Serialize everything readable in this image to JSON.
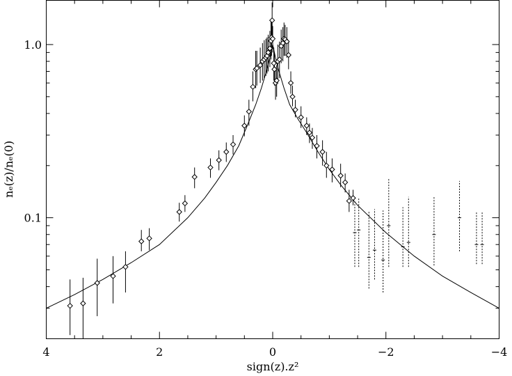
{
  "chart_data": {
    "type": "scatter",
    "xlabel": "sign(z).z²",
    "ylabel": "nₑ(z)/nₑ(0)",
    "xlim": [
      4,
      -4
    ],
    "ylim": [
      0.02,
      1.8
    ],
    "yscale": "log",
    "x_reversed": true,
    "grid": false,
    "x_ticks": [
      4,
      2,
      0,
      -2,
      -4
    ],
    "x_tick_labels": [
      "4",
      "2",
      "0",
      "−2",
      "−4"
    ],
    "y_ticks": [
      0.1,
      1.0
    ],
    "y_tick_labels": [
      "0.1",
      "1.0"
    ],
    "fit_curve": {
      "name": "",
      "model": "exponential in sqrt(|x|) with amplitude 0.70 and scale 0.50, with an inner cusp",
      "x": [
        4,
        3.5,
        3.0,
        2.5,
        2.0,
        1.5,
        1.2,
        1.0,
        0.8,
        0.6,
        0.45,
        0.3,
        0.2,
        0.1,
        0.05,
        0,
        -0.05,
        -0.1,
        -0.2,
        -0.3,
        -0.45,
        -0.6,
        -0.8,
        -1.0,
        -1.2,
        -1.5,
        -2.0,
        -2.5,
        -3.0,
        -3.5,
        -4.0
      ],
      "y": [
        0.03,
        0.036,
        0.044,
        0.055,
        0.07,
        0.1,
        0.13,
        0.16,
        0.2,
        0.26,
        0.34,
        0.45,
        0.56,
        0.72,
        0.84,
        1.0,
        0.84,
        0.72,
        0.56,
        0.45,
        0.37,
        0.31,
        0.24,
        0.19,
        0.155,
        0.118,
        0.082,
        0.06,
        0.046,
        0.037,
        0.03
      ]
    },
    "series": [
      {
        "name": "",
        "marker": "diamond",
        "errorbar_style": "solid",
        "x": [
          3.58,
          3.35,
          3.1,
          2.82,
          2.6,
          2.32,
          2.18,
          1.65,
          1.55,
          1.38,
          1.1,
          0.95,
          0.82,
          0.7,
          0.5,
          0.42,
          0.35,
          0.3,
          0.28,
          0.22,
          0.18,
          0.15,
          0.12,
          0.1,
          0.08,
          0.05,
          0.03,
          0.02,
          0.01,
          0.0,
          -0.02,
          -0.03,
          -0.05,
          -0.07,
          -0.09,
          -0.12,
          -0.15,
          -0.18,
          -0.2,
          -0.22,
          -0.25,
          -0.28,
          -0.32,
          -0.35,
          -0.4,
          -0.5,
          -0.6,
          -0.65,
          -0.7,
          -0.78,
          -0.88,
          -0.95,
          -1.05,
          -1.2,
          -1.28,
          -1.35,
          -1.42
        ],
        "y": [
          0.031,
          0.032,
          0.042,
          0.046,
          0.052,
          0.073,
          0.076,
          0.108,
          0.121,
          0.172,
          0.195,
          0.215,
          0.24,
          0.265,
          0.34,
          0.41,
          0.57,
          0.72,
          0.73,
          0.76,
          0.8,
          0.82,
          0.84,
          0.86,
          0.9,
          0.95,
          1.05,
          1.1,
          1.38,
          1.08,
          0.78,
          0.72,
          0.6,
          0.62,
          0.8,
          0.82,
          0.98,
          1.02,
          1.08,
          1.07,
          1.04,
          0.87,
          0.6,
          0.5,
          0.42,
          0.38,
          0.34,
          0.31,
          0.29,
          0.26,
          0.24,
          0.2,
          0.19,
          0.175,
          0.16,
          0.125,
          0.13
        ],
        "yerr_lo": [
          0.021,
          0.019,
          0.027,
          0.032,
          0.037,
          0.064,
          0.065,
          0.095,
          0.108,
          0.148,
          0.17,
          0.188,
          0.21,
          0.232,
          0.295,
          0.34,
          0.47,
          0.56,
          0.58,
          0.6,
          0.62,
          0.64,
          0.66,
          0.68,
          0.7,
          0.74,
          0.82,
          0.86,
          1.04,
          0.9,
          0.62,
          0.58,
          0.48,
          0.5,
          0.62,
          0.64,
          0.78,
          0.8,
          0.86,
          0.86,
          0.84,
          0.72,
          0.52,
          0.44,
          0.38,
          0.33,
          0.3,
          0.27,
          0.25,
          0.22,
          0.2,
          0.17,
          0.16,
          0.15,
          0.14,
          0.108,
          0.118
        ],
        "yerr_hi": [
          0.044,
          0.045,
          0.058,
          0.06,
          0.064,
          0.085,
          0.087,
          0.122,
          0.135,
          0.195,
          0.22,
          0.245,
          0.272,
          0.3,
          0.39,
          0.48,
          0.7,
          0.92,
          0.92,
          0.96,
          1.02,
          1.06,
          1.08,
          1.1,
          1.14,
          1.2,
          1.36,
          1.4,
          1.75,
          1.28,
          0.96,
          0.9,
          0.74,
          0.76,
          1.0,
          1.04,
          1.22,
          1.26,
          1.34,
          1.3,
          1.26,
          1.06,
          0.7,
          0.58,
          0.48,
          0.44,
          0.38,
          0.35,
          0.33,
          0.3,
          0.28,
          0.24,
          0.22,
          0.205,
          0.18,
          0.145,
          0.145
        ]
      },
      {
        "name": "",
        "marker": "hline",
        "errorbar_style": "dotted",
        "x": [
          -1.45,
          -1.52,
          -1.7,
          -1.8,
          -1.95,
          -2.05,
          -2.3,
          -2.4,
          -2.85,
          -3.3,
          -3.6,
          -3.7
        ],
        "y": [
          0.082,
          0.085,
          0.059,
          0.065,
          0.057,
          0.09,
          0.068,
          0.072,
          0.08,
          0.1,
          0.07,
          0.07
        ],
        "yerr_lo": [
          0.052,
          0.052,
          0.039,
          0.044,
          0.037,
          0.052,
          0.052,
          0.052,
          0.053,
          0.064,
          0.054,
          0.054
        ],
        "yerr_hi": [
          0.125,
          0.13,
          0.108,
          0.112,
          0.11,
          0.17,
          0.115,
          0.132,
          0.133,
          0.163,
          0.108,
          0.108
        ]
      }
    ]
  }
}
